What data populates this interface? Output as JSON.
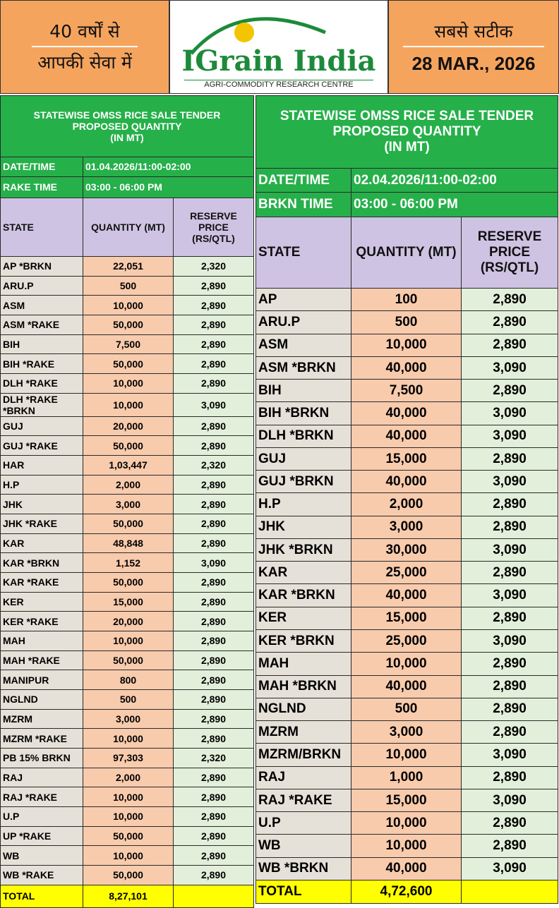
{
  "header": {
    "left": [
      "40 वर्षों से",
      "आपकी सेवा में"
    ],
    "logo": {
      "name": "IGrain India",
      "tagline": "AGRI-COMMODITY RESEARCH CENTRE"
    },
    "right": {
      "slogan": "सबसे सटीक",
      "date": "28 MAR., 2026"
    }
  },
  "tables": [
    {
      "title": [
        "STATEWISE OMSS RICE SALE TENDER",
        "PROPOSED QUANTITY",
        "(IN MT)"
      ],
      "info": [
        [
          "DATE/TIME",
          "01.04.2026/11:00-02:00"
        ],
        [
          "RAKE TIME",
          "03:00 - 06:00 PM"
        ]
      ],
      "columns": [
        "STATE",
        "QUANTITY (MT)",
        "RESERVE PRICE (RS/QTL)"
      ],
      "rows": [
        [
          "AP *BRKN",
          "22,051",
          "2,320"
        ],
        [
          "ARU.P",
          "500",
          "2,890"
        ],
        [
          "ASM",
          "10,000",
          "2,890"
        ],
        [
          "ASM *RAKE",
          "50,000",
          "2,890"
        ],
        [
          "BIH",
          "7,500",
          "2,890"
        ],
        [
          "BIH *RAKE",
          "50,000",
          "2,890"
        ],
        [
          "DLH *RAKE",
          "10,000",
          "2,890"
        ],
        [
          "DLH *RAKE *BRKN",
          "10,000",
          "3,090"
        ],
        [
          "GUJ",
          "20,000",
          "2,890"
        ],
        [
          "GUJ *RAKE",
          "50,000",
          "2,890"
        ],
        [
          "HAR",
          "1,03,447",
          "2,320"
        ],
        [
          "H.P",
          "2,000",
          "2,890"
        ],
        [
          "JHK",
          "3,000",
          "2,890"
        ],
        [
          "JHK *RAKE",
          "50,000",
          "2,890"
        ],
        [
          "KAR",
          "48,848",
          "2,890"
        ],
        [
          "KAR *BRKN",
          "1,152",
          "3,090"
        ],
        [
          "KAR *RAKE",
          "50,000",
          "2,890"
        ],
        [
          "KER",
          "15,000",
          "2,890"
        ],
        [
          "KER *RAKE",
          "20,000",
          "2,890"
        ],
        [
          "MAH",
          "10,000",
          "2,890"
        ],
        [
          "MAH *RAKE",
          "50,000",
          "2,890"
        ],
        [
          "MANIPUR",
          "800",
          "2,890"
        ],
        [
          "NGLND",
          "500",
          "2,890"
        ],
        [
          "MZRM",
          "3,000",
          "2,890"
        ],
        [
          "MZRM *RAKE",
          "10,000",
          "2,890"
        ],
        [
          "PB 15% BRKN",
          "97,303",
          "2,320"
        ],
        [
          "RAJ",
          "2,000",
          "2,890"
        ],
        [
          "RAJ *RAKE",
          "10,000",
          "2,890"
        ],
        [
          "U.P",
          "10,000",
          "2,890"
        ],
        [
          "UP *RAKE",
          "50,000",
          "2,890"
        ],
        [
          "WB",
          "10,000",
          "2,890"
        ],
        [
          "WB *RAKE",
          "50,000",
          "2,890"
        ]
      ],
      "total": [
        "TOTAL",
        "8,27,101"
      ]
    },
    {
      "title": [
        "STATEWISE OMSS RICE SALE TENDER",
        "PROPOSED QUANTITY",
        "(IN MT)"
      ],
      "info": [
        [
          "DATE/TIME",
          "02.04.2026/11:00-02:00"
        ],
        [
          "BRKN TIME",
          "03:00 - 06:00 PM"
        ]
      ],
      "columns": [
        "STATE",
        "QUANTITY (MT)",
        "RESERVE PRICE (RS/QTL)"
      ],
      "rows": [
        [
          "AP",
          "100",
          "2,890"
        ],
        [
          "ARU.P",
          "500",
          "2,890"
        ],
        [
          "ASM",
          "10,000",
          "2,890"
        ],
        [
          "ASM *BRKN",
          "40,000",
          "3,090"
        ],
        [
          "BIH",
          "7,500",
          "2,890"
        ],
        [
          "BIH *BRKN",
          "40,000",
          "3,090"
        ],
        [
          "DLH *BRKN",
          "40,000",
          "3,090"
        ],
        [
          "GUJ",
          "15,000",
          "2,890"
        ],
        [
          "GUJ *BRKN",
          "40,000",
          "3,090"
        ],
        [
          "H.P",
          "2,000",
          "2,890"
        ],
        [
          "JHK",
          "3,000",
          "2,890"
        ],
        [
          "JHK *BRKN",
          "30,000",
          "3,090"
        ],
        [
          "KAR",
          "25,000",
          "2,890"
        ],
        [
          "KAR *BRKN",
          "40,000",
          "3,090"
        ],
        [
          "KER",
          "15,000",
          "2,890"
        ],
        [
          "KER *BRKN",
          "25,000",
          "3,090"
        ],
        [
          "MAH",
          "10,000",
          "2,890"
        ],
        [
          "MAH *BRKN",
          "40,000",
          "2,890"
        ],
        [
          "NGLND",
          "500",
          "2,890"
        ],
        [
          "MZRM",
          "3,000",
          "2,890"
        ],
        [
          "MZRM/BRKN",
          "10,000",
          "3,090"
        ],
        [
          "RAJ",
          "1,000",
          "2,890"
        ],
        [
          "RAJ *RAKE",
          "15,000",
          "3,090"
        ],
        [
          "U.P",
          "10,000",
          "2,890"
        ],
        [
          "WB",
          "10,000",
          "2,890"
        ],
        [
          "WB *BRKN",
          "40,000",
          "3,090"
        ]
      ],
      "total": [
        "TOTAL",
        "4,72,600"
      ]
    }
  ]
}
